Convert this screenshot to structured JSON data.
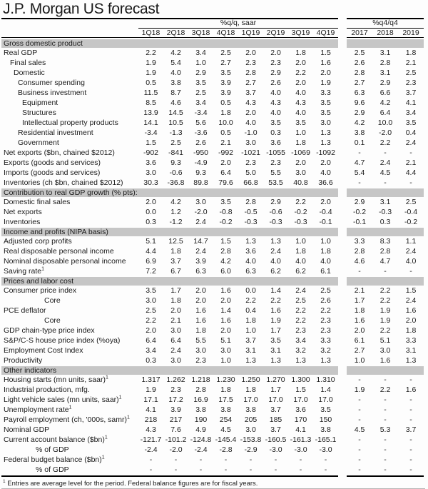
{
  "title": "J.P. Morgan US forecast",
  "colors": {
    "band": "#c6c6c6",
    "rule": "#000000"
  },
  "table": {
    "group1_label": "%q/q, saar",
    "group2_label": "%q4/q4",
    "quarter_columns": [
      "1Q18",
      "2Q18",
      "3Q18",
      "4Q18",
      "1Q19",
      "2Q19",
      "3Q19",
      "4Q19"
    ],
    "annual_columns": [
      "2017",
      "2018",
      "2019"
    ],
    "sections": [
      {
        "header": "Gross domestic product",
        "rows": [
          {
            "label": "Real GDP",
            "indent": 0,
            "q": [
              "2.2",
              "4.2",
              "3.4",
              "2.5",
              "2.0",
              "2.0",
              "1.8",
              "1.5"
            ],
            "y": [
              "2.5",
              "3.1",
              "1.8"
            ]
          },
          {
            "label": "Final sales",
            "indent": 1,
            "q": [
              "1.9",
              "5.4",
              "1.0",
              "2.7",
              "2.3",
              "2.3",
              "2.0",
              "1.6"
            ],
            "y": [
              "2.6",
              "2.8",
              "2.1"
            ]
          },
          {
            "label": "Domestic",
            "indent": 2,
            "q": [
              "1.9",
              "4.0",
              "2.9",
              "3.5",
              "2.8",
              "2.9",
              "2.2",
              "2.0"
            ],
            "y": [
              "2.8",
              "3.1",
              "2.5"
            ]
          },
          {
            "label": "Consumer spending",
            "indent": 3,
            "q": [
              "0.5",
              "3.8",
              "3.5",
              "3.9",
              "2.7",
              "2.6",
              "2.0",
              "1.9"
            ],
            "y": [
              "2.7",
              "2.9",
              "2.3"
            ]
          },
          {
            "label": "Business investment",
            "indent": 3,
            "q": [
              "11.5",
              "8.7",
              "2.5",
              "3.9",
              "3.7",
              "4.0",
              "4.0",
              "3.3"
            ],
            "y": [
              "6.3",
              "6.6",
              "3.7"
            ]
          },
          {
            "label": "Equipment",
            "indent": 4,
            "q": [
              "8.5",
              "4.6",
              "3.4",
              "0.5",
              "4.3",
              "4.3",
              "4.3",
              "3.5"
            ],
            "y": [
              "9.6",
              "4.2",
              "4.1"
            ]
          },
          {
            "label": "Structures",
            "indent": 4,
            "q": [
              "13.9",
              "14.5",
              "-3.4",
              "1.8",
              "2.0",
              "4.0",
              "4.0",
              "3.5"
            ],
            "y": [
              "2.9",
              "6.4",
              "3.4"
            ]
          },
          {
            "label": "Intellectual property products",
            "indent": 4,
            "q": [
              "14.1",
              "10.5",
              "5.6",
              "10.0",
              "4.0",
              "3.5",
              "3.5",
              "3.0"
            ],
            "y": [
              "4.2",
              "10.0",
              "3.5"
            ]
          },
          {
            "label": "Residential investment",
            "indent": 3,
            "q": [
              "-3.4",
              "-1.3",
              "-3.6",
              "0.5",
              "-1.0",
              "0.3",
              "1.0",
              "1.3"
            ],
            "y": [
              "3.8",
              "-2.0",
              "0.4"
            ]
          },
          {
            "label": "Government",
            "indent": 3,
            "q": [
              "1.5",
              "2.5",
              "2.6",
              "2.1",
              "3.0",
              "3.6",
              "1.8",
              "1.3"
            ],
            "y": [
              "0.1",
              "2.2",
              "2.4"
            ]
          },
          {
            "label": "Net exports ($bn, chained $2012)",
            "indent": 0,
            "q": [
              "-902",
              "-841",
              "-950",
              "-992",
              "-1021",
              "-1055",
              "-1069",
              "-1092"
            ],
            "y": [
              "-",
              "-",
              "-"
            ]
          },
          {
            "label": "Exports (goods and services)",
            "indent": 0,
            "q": [
              "3.6",
              "9.3",
              "-4.9",
              "2.0",
              "2.3",
              "2.3",
              "2.0",
              "2.0"
            ],
            "y": [
              "4.7",
              "2.4",
              "2.1"
            ]
          },
          {
            "label": "Imports (goods and services)",
            "indent": 0,
            "q": [
              "3.0",
              "-0.6",
              "9.3",
              "6.4",
              "5.0",
              "5.5",
              "3.0",
              "4.0"
            ],
            "y": [
              "5.4",
              "4.5",
              "4.4"
            ]
          },
          {
            "label": "Inventories (ch $bn, chained $2012)",
            "indent": 0,
            "q": [
              "30.3",
              "-36.8",
              "89.8",
              "79.6",
              "66.8",
              "53.5",
              "40.8",
              "36.6"
            ],
            "y": [
              "-",
              "-",
              "-"
            ]
          }
        ]
      },
      {
        "header": "Contribution to real GDP growth (% pts):",
        "rows": [
          {
            "label": "Domestic final sales",
            "indent": 0,
            "q": [
              "2.0",
              "4.2",
              "3.0",
              "3.5",
              "2.8",
              "2.9",
              "2.2",
              "2.0"
            ],
            "y": [
              "2.9",
              "3.1",
              "2.5"
            ]
          },
          {
            "label": "Net exports",
            "indent": 0,
            "q": [
              "0.0",
              "1.2",
              "-2.0",
              "-0.8",
              "-0.5",
              "-0.6",
              "-0.2",
              "-0.4"
            ],
            "y": [
              "-0.2",
              "-0.3",
              "-0.4"
            ]
          },
          {
            "label": "Inventories",
            "indent": 0,
            "q": [
              "0.3",
              "-1.2",
              "2.4",
              "-0.2",
              "-0.3",
              "-0.3",
              "-0.3",
              "-0.1"
            ],
            "y": [
              "-0.1",
              "0.3",
              "-0.2"
            ]
          }
        ]
      },
      {
        "header": "Income and profits (NIPA basis)",
        "rows": [
          {
            "label": "Adjusted corp profits",
            "indent": 0,
            "q": [
              "5.1",
              "12.5",
              "14.7",
              "1.5",
              "1.3",
              "1.3",
              "1.0",
              "1.0"
            ],
            "y": [
              "3.3",
              "8.3",
              "1.1"
            ]
          },
          {
            "label": "Real disposable personal income",
            "indent": 0,
            "q": [
              "4.4",
              "1.8",
              "2.4",
              "2.8",
              "3.6",
              "2.4",
              "1.8",
              "1.8"
            ],
            "y": [
              "2.8",
              "2.8",
              "2.4"
            ]
          },
          {
            "label": "Nominal disposable personal income",
            "indent": 0,
            "q": [
              "6.9",
              "3.7",
              "3.9",
              "4.2",
              "4.0",
              "4.0",
              "4.0",
              "4.0"
            ],
            "y": [
              "4.6",
              "4.7",
              "4.0"
            ]
          },
          {
            "label": "Saving rate",
            "sup": "1",
            "indent": 0,
            "q": [
              "7.2",
              "6.7",
              "6.3",
              "6.0",
              "6.3",
              "6.2",
              "6.2",
              "6.1"
            ],
            "y": [
              "-",
              "-",
              "-"
            ]
          }
        ]
      },
      {
        "header": "Prices and labor cost",
        "rows": [
          {
            "label": "Consumer price index",
            "indent": 0,
            "q": [
              "3.5",
              "1.7",
              "2.0",
              "1.6",
              "0.0",
              "1.4",
              "2.4",
              "2.5"
            ],
            "y": [
              "2.1",
              "2.2",
              "1.5"
            ]
          },
          {
            "label": "Core",
            "indent": 6,
            "q": [
              "3.0",
              "1.8",
              "2.0",
              "2.0",
              "2.2",
              "2.2",
              "2.5",
              "2.6"
            ],
            "y": [
              "1.7",
              "2.2",
              "2.4"
            ]
          },
          {
            "label": "PCE deflator",
            "indent": 0,
            "q": [
              "2.5",
              "2.0",
              "1.6",
              "1.4",
              "0.4",
              "1.6",
              "2.2",
              "2.2"
            ],
            "y": [
              "1.8",
              "1.9",
              "1.6"
            ]
          },
          {
            "label": "Core",
            "indent": 6,
            "q": [
              "2.2",
              "2.1",
              "1.6",
              "1.6",
              "1.8",
              "1.9",
              "2.2",
              "2.3"
            ],
            "y": [
              "1.6",
              "1.9",
              "2.0"
            ]
          },
          {
            "label": "GDP chain-type price index",
            "indent": 0,
            "q": [
              "2.0",
              "3.0",
              "1.8",
              "2.0",
              "1.0",
              "1.7",
              "2.3",
              "2.3"
            ],
            "y": [
              "2.0",
              "2.2",
              "1.8"
            ]
          },
          {
            "label": "S&P/C-S house price index (%oya)",
            "indent": 0,
            "q": [
              "6.4",
              "6.4",
              "5.5",
              "5.1",
              "3.7",
              "3.5",
              "3.4",
              "3.3"
            ],
            "y": [
              "6.1",
              "5.1",
              "3.3"
            ]
          },
          {
            "label": "Employment Cost Index",
            "indent": 0,
            "q": [
              "3.4",
              "2.4",
              "3.0",
              "3.0",
              "3.1",
              "3.1",
              "3.2",
              "3.2"
            ],
            "y": [
              "2.7",
              "3.0",
              "3.1"
            ]
          },
          {
            "label": "Productivity",
            "indent": 0,
            "q": [
              "0.3",
              "3.0",
              "2.3",
              "1.0",
              "1.3",
              "1.3",
              "1.3",
              "1.3"
            ],
            "y": [
              "1.0",
              "1.6",
              "1.3"
            ]
          }
        ]
      },
      {
        "header": "Other indicators",
        "rows": [
          {
            "label": "Housing starts (mn units, saar)",
            "sup": "1",
            "indent": 0,
            "q": [
              "1.317",
              "1.262",
              "1.218",
              "1.230",
              "1.250",
              "1.270",
              "1.300",
              "1.310"
            ],
            "y": [
              "-",
              "-",
              "-"
            ]
          },
          {
            "label": "Industrial production, mfg.",
            "indent": 0,
            "q": [
              "1.9",
              "2.3",
              "2.8",
              "1.8",
              "1.8",
              "1.7",
              "1.5",
              "1.4"
            ],
            "y": [
              "1.9",
              "2.2",
              "1.6"
            ]
          },
          {
            "label": "Light vehicle sales (mn units, saar)",
            "sup": "1",
            "indent": 0,
            "q": [
              "17.1",
              "17.2",
              "16.9",
              "17.5",
              "17.0",
              "17.0",
              "17.0",
              "17.0"
            ],
            "y": [
              "-",
              "-",
              "-"
            ]
          },
          {
            "label": "Unemployment rate",
            "sup": "1",
            "indent": 0,
            "q": [
              "4.1",
              "3.9",
              "3.8",
              "3.8",
              "3.8",
              "3.7",
              "3.6",
              "3.5"
            ],
            "y": [
              "-",
              "-",
              "-"
            ]
          },
          {
            "label": "Payroll employment (ch, '000s, samr)",
            "sup": "1",
            "indent": 0,
            "q": [
              "218",
              "217",
              "190",
              "254",
              "205",
              "185",
              "170",
              "150"
            ],
            "y": [
              "-",
              "-",
              "-"
            ]
          },
          {
            "label": "Nominal GDP",
            "indent": 0,
            "q": [
              "4.3",
              "7.6",
              "4.9",
              "4.5",
              "3.0",
              "3.7",
              "4.1",
              "3.8"
            ],
            "y": [
              "4.5",
              "5.3",
              "3.7"
            ]
          },
          {
            "label": "Current account balance ($bn)",
            "sup": "1",
            "indent": 0,
            "q": [
              "-121.7",
              "-101.2",
              "-124.8",
              "-145.4",
              "-153.8",
              "-160.5",
              "-161.3",
              "-165.1"
            ],
            "y": [
              "-",
              "-",
              "-"
            ]
          },
          {
            "label": "% of GDP",
            "indent": 5,
            "q": [
              "-2.4",
              "-2.0",
              "-2.4",
              "-2.8",
              "-2.9",
              "-3.0",
              "-3.0",
              "-3.0"
            ],
            "y": [
              "-",
              "-",
              "-"
            ]
          },
          {
            "label": "Federal budget balance ($bn)",
            "sup": "1",
            "indent": 0,
            "q": [
              "-",
              "-",
              "-",
              "-",
              "-",
              "-",
              "-",
              "-"
            ],
            "y": [
              "-",
              "-",
              "-"
            ]
          },
          {
            "label": "% of GDP",
            "indent": 5,
            "q": [
              "-",
              "-",
              "-",
              "-",
              "-",
              "-",
              "-",
              "-"
            ],
            "y": [
              "-",
              "-",
              "-"
            ]
          }
        ]
      }
    ]
  },
  "footnote": {
    "sup": "1",
    "text": " Entries are average level for the period.  Federal balance figures are for fiscal years."
  }
}
